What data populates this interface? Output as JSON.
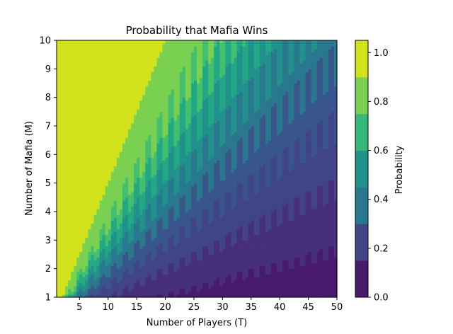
{
  "chart_data": {
    "type": "contourf",
    "title": "Probability that Mafia Wins",
    "xlabel": "Number of Players (T)",
    "ylabel": "Number of Mafia (M)",
    "colorbar_label": "Probability",
    "xlim": [
      1,
      50
    ],
    "ylim": [
      1,
      10
    ],
    "xticks": [
      5,
      10,
      15,
      20,
      25,
      30,
      35,
      40,
      45,
      50
    ],
    "yticks": [
      1,
      2,
      3,
      4,
      5,
      6,
      7,
      8,
      9,
      10
    ],
    "colorbar_ticks": [
      0.0,
      0.2,
      0.4,
      0.6,
      0.8,
      1.0
    ],
    "colorbar_tick_labels": [
      "0.0",
      "0.2",
      "0.4",
      "0.6",
      "0.8",
      "1.0"
    ],
    "levels": [
      0.0,
      0.105,
      0.21,
      0.315,
      0.42,
      0.525,
      0.63,
      0.735,
      0.84,
      0.945,
      1.05
    ],
    "level_colors": [
      "#481a6c",
      "#472f7d",
      "#414487",
      "#39568c",
      "#2a788e",
      "#21918c",
      "#22a884",
      "#44bf70",
      "#7ad151",
      "#d2e21b"
    ],
    "colorbar_band_colors": [
      "#481a6c",
      "#414487",
      "#2a788e",
      "#21918c",
      "#35b779",
      "#7ad151",
      "#d2e21b"
    ],
    "pattern": "sawtooth contours; band boundaries rise with T, peaks at even T, troughs at odd T; region where M >= T/2 has probability 1.0",
    "data_rule": "P(T,M) increases with M/T; P = 1.0 when 2M >= T"
  }
}
